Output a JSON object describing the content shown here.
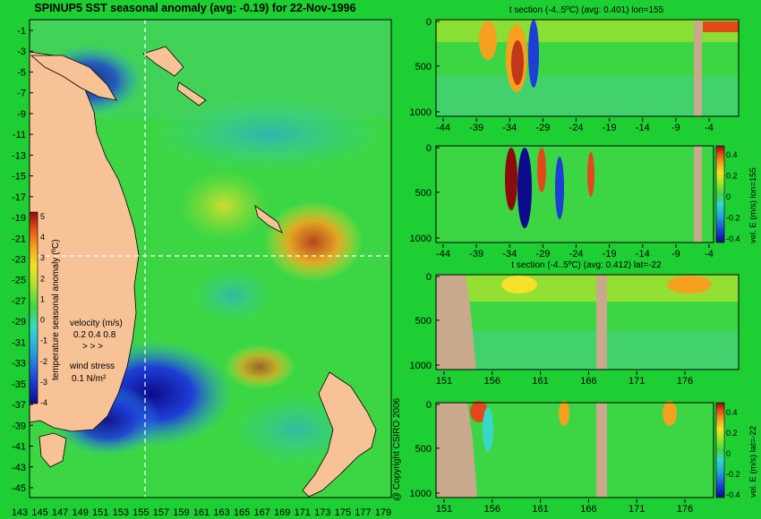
{
  "main_title": "SPINUP5 SST seasonal anomaly (avg: -0.19) for 22-Nov-1996",
  "copyright": "@ Copyright CSIRO 2006",
  "colors": {
    "background": "#1ecf33",
    "land": "#f7c296",
    "land_section": "#c8a98c",
    "colorscale": [
      "#0d0a8c",
      "#1e3fd6",
      "#2aa6e0",
      "#38d7c8",
      "#3cd645",
      "#a9e22d",
      "#f3e12a",
      "#f5a11f",
      "#e3481a",
      "#8a0c0c"
    ]
  },
  "chart_data": [
    {
      "id": "map",
      "type": "heatmap",
      "title": "SPINUP5 SST seasonal anomaly (avg: -0.19) for 22-Nov-1996",
      "x_ticks": [
        "143",
        "145",
        "147",
        "149",
        "151",
        "153",
        "155",
        "157",
        "159",
        "161",
        "163",
        "165",
        "167",
        "169",
        "171",
        "173",
        "175",
        "177",
        "179"
      ],
      "y_ticks": [
        "-1",
        "-3",
        "-5",
        "-7",
        "-9",
        "-11",
        "-13",
        "-15",
        "-17",
        "-19",
        "-21",
        "-23",
        "-25",
        "-27",
        "-29",
        "-31",
        "-33",
        "-35",
        "-37",
        "-39",
        "-41",
        "-43",
        "-45"
      ],
      "xlim": [
        143,
        180
      ],
      "ylim": [
        -45,
        0
      ],
      "crosshair": {
        "lon": 155,
        "lat": -22
      },
      "colorbar": {
        "label": "temperature seasonal anomaly (ºC)",
        "ticks": [
          "5",
          "4",
          "3",
          "2",
          "1",
          "0",
          "-1",
          "-2",
          "-3",
          "-4"
        ],
        "range": [
          -4,
          5
        ]
      },
      "velocity_legend": {
        "title": "velocity (m/s)",
        "values": "0.2 0.4 0.8",
        "arrows": "> > >"
      },
      "wind_legend": {
        "title": "wind stress",
        "value": "0.1 N/m²"
      }
    },
    {
      "id": "tsec_lon",
      "type": "heatmap",
      "title": "t section (-4..5ºC) (avg: 0.401) lon=155",
      "x_ticks": [
        "-44",
        "-39",
        "-34",
        "-29",
        "-24",
        "-19",
        "-14",
        "-9",
        "-4"
      ],
      "y_ticks": [
        "0",
        "500",
        "1000"
      ],
      "xlim": [
        -45,
        -1
      ],
      "ylim": [
        1050,
        0
      ]
    },
    {
      "id": "vel_lon",
      "type": "heatmap",
      "title": "",
      "x_ticks": [
        "-44",
        "-39",
        "-34",
        "-29",
        "-24",
        "-19",
        "-14",
        "-9",
        "-4"
      ],
      "y_ticks": [
        "0",
        "500",
        "1000"
      ],
      "colorbar": {
        "label": "vel. E (m/s) lon=155",
        "ticks": [
          "0.4",
          "0.2",
          "0",
          "-0.2",
          "-0.4"
        ],
        "range": [
          -0.4,
          0.4
        ]
      }
    },
    {
      "id": "tsec_lat",
      "type": "heatmap",
      "title": "t section (-4..5ºC) (avg: 0.412) lat=-22",
      "x_ticks": [
        "151",
        "156",
        "161",
        "166",
        "171",
        "176"
      ],
      "y_ticks": [
        "0",
        "500",
        "1000"
      ],
      "xlim": [
        150,
        180
      ],
      "ylim": [
        1050,
        0
      ]
    },
    {
      "id": "vel_lat",
      "type": "heatmap",
      "title": "",
      "x_ticks": [
        "151",
        "156",
        "161",
        "166",
        "171",
        "176"
      ],
      "y_ticks": [
        "0",
        "500",
        "1000"
      ],
      "colorbar": {
        "label": "vel. E (m/s) lat=-22",
        "ticks": [
          "0.4",
          "0.2",
          "0",
          "-0.2",
          "-0.4"
        ],
        "range": [
          -0.4,
          0.4
        ]
      }
    }
  ]
}
